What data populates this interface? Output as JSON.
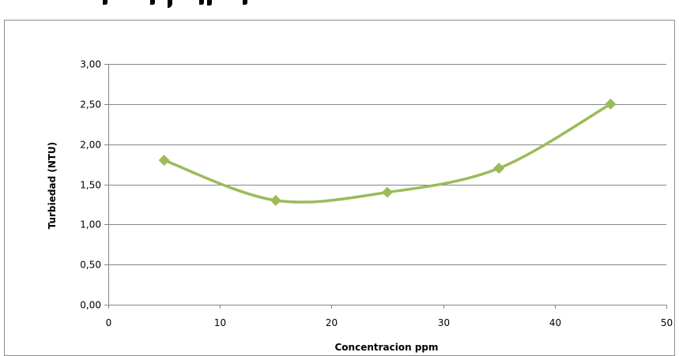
{
  "chart_data": {
    "type": "scatter",
    "title": "",
    "xlabel": "Concentracion ppm",
    "ylabel": "Turbiedad (NTU)",
    "xlim": [
      0,
      50
    ],
    "ylim": [
      0,
      3
    ],
    "x_ticks": [
      "0",
      "10",
      "20",
      "30",
      "40",
      "50"
    ],
    "y_ticks": [
      "0,00",
      "0,50",
      "1,00",
      "1,50",
      "2,00",
      "2,50",
      "3,00"
    ],
    "grid": "horizontal",
    "smooth": true,
    "marker": "diamond",
    "series": [
      {
        "color": "#9bbb59",
        "x": [
          5,
          15,
          25,
          35,
          45
        ],
        "y": [
          1.8,
          1.3,
          1.4,
          1.7,
          2.5
        ]
      }
    ]
  }
}
